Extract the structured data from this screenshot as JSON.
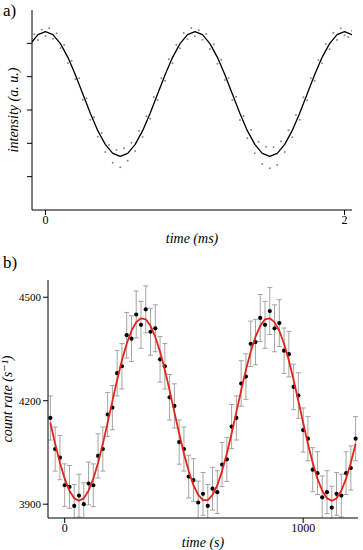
{
  "chart_data": [
    {
      "type": "scatter",
      "title": "a)",
      "x_label": "time (ms)",
      "y_label": "intensity (a. u.)",
      "xlim": [
        -0.09,
        2.05
      ],
      "ylim": [
        0,
        6
      ],
      "xticks": [
        0,
        2
      ],
      "yticks": [
        1,
        2,
        3,
        4,
        5
      ],
      "tick_labels": "x",
      "series": [
        {
          "type": "scatter",
          "color": "#8a8a8a",
          "marker": "dot",
          "x": [
            -0.075,
            -0.05,
            -0.025,
            0,
            0.025,
            0.05,
            0.075,
            0.1,
            0.125,
            0.15,
            0.175,
            0.2,
            0.225,
            0.25,
            0.275,
            0.3,
            0.325,
            0.35,
            0.375,
            0.4,
            0.425,
            0.45,
            0.475,
            0.5,
            0.525,
            0.55,
            0.575,
            0.6,
            0.625,
            0.65,
            0.675,
            0.7,
            0.725,
            0.75,
            0.775,
            0.8,
            0.825,
            0.85,
            0.875,
            0.9,
            0.925,
            0.95,
            0.975,
            1,
            1.025,
            1.05,
            1.075,
            1.1,
            1.125,
            1.15,
            1.175,
            1.2,
            1.225,
            1.25,
            1.275,
            1.3,
            1.325,
            1.35,
            1.375,
            1.4,
            1.425,
            1.45,
            1.475,
            1.5,
            1.525,
            1.55,
            1.575,
            1.6,
            1.625,
            1.65,
            1.675,
            1.7,
            1.725,
            1.75,
            1.775,
            1.8,
            1.825,
            1.85,
            1.875,
            1.9,
            1.925,
            1.95,
            1.975,
            2,
            2.025,
            2.05,
            2.075
          ],
          "values": [
            5.27,
            5.1,
            5.41,
            5.22,
            5.45,
            5.14,
            5.3,
            4.86,
            4.95,
            4.41,
            4.48,
            3.92,
            3.95,
            3.31,
            3.35,
            2.71,
            2.78,
            2.2,
            2.31,
            1.74,
            1.95,
            1.42,
            1.8,
            1.28,
            1.85,
            1.48,
            2.02,
            1.77,
            2.38,
            2.19,
            2.81,
            2.74,
            3.39,
            3.3,
            3.95,
            3.88,
            4.52,
            4.4,
            4.96,
            4.85,
            5.31,
            5.12,
            5.46,
            5.21,
            5.4,
            5.11,
            5.28,
            4.83,
            4.97,
            4.39,
            4.51,
            3.9,
            3.96,
            3.3,
            3.4,
            2.7,
            2.82,
            2.15,
            2.4,
            1.7,
            2.05,
            1.38,
            1.9,
            1.25,
            1.88,
            1.35,
            2.06,
            1.74,
            2.39,
            2.18,
            2.85,
            2.71,
            3.38,
            3.29,
            3.95,
            3.88,
            4.5,
            4.4,
            4.98,
            4.82,
            5.32,
            5.1,
            5.45,
            5.24,
            5.19,
            5.38,
            5.04
          ]
        },
        {
          "type": "line",
          "color": "#000000",
          "line_style": "solid",
          "x": [
            -0.1,
            -0.05,
            0,
            0.05,
            0.1,
            0.15,
            0.2,
            0.25,
            0.3,
            0.35,
            0.4,
            0.45,
            0.5,
            0.55,
            0.6,
            0.65,
            0.7,
            0.75,
            0.8,
            0.85,
            0.9,
            0.95,
            1,
            1.05,
            1.1,
            1.15,
            1.2,
            1.25,
            1.3,
            1.35,
            1.4,
            1.45,
            1.5,
            1.55,
            1.6,
            1.65,
            1.7,
            1.75,
            1.8,
            1.85,
            1.9,
            1.95,
            2,
            2.05,
            2.1
          ],
          "values": [
            4.99,
            5.26,
            5.35,
            5.26,
            4.99,
            4.58,
            4.06,
            3.48,
            2.9,
            2.38,
            1.97,
            1.7,
            1.61,
            1.7,
            1.97,
            2.38,
            2.9,
            3.48,
            4.06,
            4.58,
            4.99,
            5.26,
            5.35,
            5.26,
            4.99,
            4.58,
            4.06,
            3.48,
            2.9,
            2.38,
            1.97,
            1.7,
            1.61,
            1.7,
            1.97,
            2.38,
            2.9,
            3.48,
            4.06,
            4.58,
            4.99,
            5.26,
            5.35,
            5.26,
            4.99
          ]
        }
      ]
    },
    {
      "type": "scatter",
      "title": "b)",
      "x_label": "time (s)",
      "y_label": "count rate (s⁻¹)",
      "xlim": [
        -70,
        1230
      ],
      "ylim": [
        3860,
        4550
      ],
      "xticks": [
        0,
        1000
      ],
      "yticks": [
        3900,
        4200,
        4500
      ],
      "x": [
        -60,
        -40,
        -20,
        0,
        20,
        40,
        60,
        80,
        100,
        120,
        140,
        160,
        180,
        200,
        220,
        240,
        260,
        280,
        300,
        320,
        340,
        360,
        380,
        400,
        420,
        440,
        460,
        480,
        500,
        520,
        540,
        560,
        580,
        600,
        620,
        640,
        660,
        680,
        700,
        720,
        740,
        760,
        780,
        800,
        820,
        840,
        860,
        880,
        900,
        920,
        940,
        960,
        980,
        1000,
        1020,
        1040,
        1060,
        1080,
        1100,
        1120,
        1140,
        1160,
        1180,
        1200,
        1220
      ],
      "series": [
        {
          "type": "scatter",
          "color": "#000000",
          "marker": "circle",
          "values": [
            4150,
            4060,
            4035,
            3955,
            3950,
            3895,
            3925,
            3900,
            3960,
            3955,
            4040,
            4060,
            4160,
            4180,
            4280,
            4300,
            4390,
            4380,
            4450,
            4420,
            4465,
            4400,
            4410,
            4320,
            4300,
            4210,
            4185,
            4080,
            4060,
            3980,
            3970,
            3905,
            3930,
            3895,
            3945,
            3935,
            4015,
            4030,
            4125,
            4150,
            4250,
            4270,
            4365,
            4370,
            4440,
            4420,
            4460,
            4410,
            4425,
            4345,
            4335,
            4240,
            4215,
            4115,
            4090,
            4000,
            3990,
            3920,
            3935,
            3890,
            3930,
            3925,
            3990,
            4005,
            4090
          ],
          "errors": [
            64,
            64,
            64,
            62,
            62,
            62,
            62,
            62,
            62,
            62,
            64,
            64,
            64,
            64,
            66,
            66,
            66,
            66,
            68,
            68,
            68,
            68,
            68,
            66,
            66,
            66,
            64,
            64,
            64,
            62,
            62,
            62,
            62,
            62,
            62,
            62,
            64,
            64,
            64,
            64,
            66,
            66,
            66,
            66,
            68,
            68,
            68,
            68,
            68,
            66,
            66,
            66,
            66,
            64,
            64,
            64,
            62,
            62,
            62,
            62,
            62,
            62,
            62,
            64,
            64
          ]
        },
        {
          "type": "line",
          "color": "#e3241b",
          "line_style": "solid",
          "values": [
            4136,
            4075,
            4020,
            3974,
            3939,
            3917,
            3910,
            3917,
            3939,
            3974,
            4020,
            4075,
            4136,
            4199,
            4260,
            4317,
            4365,
            4403,
            4428,
            4439,
            4436,
            4417,
            4385,
            4342,
            4289,
            4230,
            4167,
            4105,
            4047,
            3996,
            3955,
            3927,
            3912,
            3912,
            3927,
            3955,
            3996,
            4047,
            4105,
            4167,
            4230,
            4289,
            4342,
            4385,
            4417,
            4436,
            4439,
            4428,
            4403,
            4365,
            4317,
            4260,
            4199,
            4136,
            4075,
            4020,
            3974,
            3939,
            3917,
            3910,
            3917,
            3939,
            3974,
            4020,
            4075
          ]
        }
      ]
    }
  ]
}
